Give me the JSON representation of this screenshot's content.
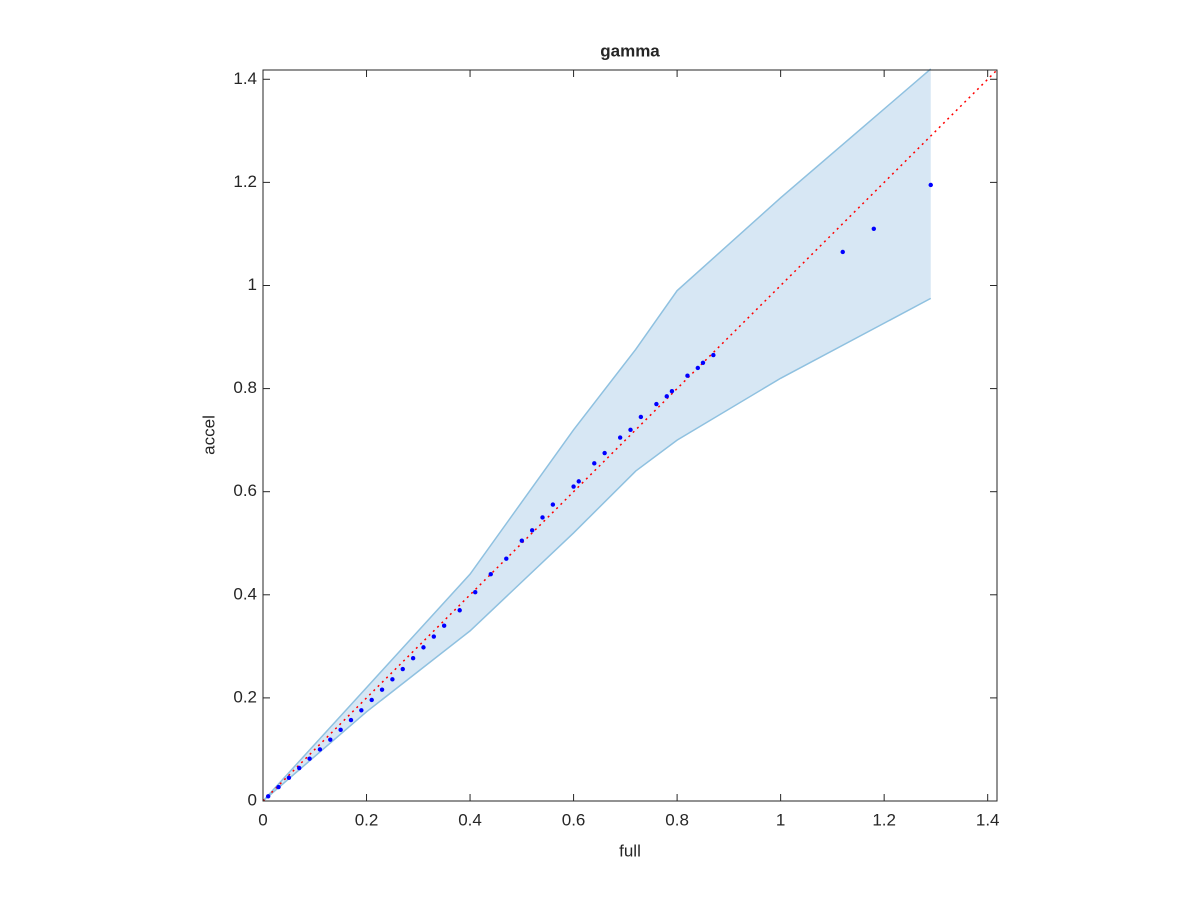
{
  "chart_data": {
    "type": "scatter",
    "title": "gamma",
    "x_label": "full",
    "y_label": "accel",
    "xlim": [
      0,
      1.418
    ],
    "ylim": [
      0,
      1.418
    ],
    "xticks": [
      0,
      0.2,
      0.4,
      0.6,
      0.8,
      1,
      1.2,
      1.4
    ],
    "yticks": [
      0,
      0.2,
      0.4,
      0.6,
      0.8,
      1,
      1.2,
      1.4
    ],
    "band": {
      "color": "#d7e7f4",
      "edge_color": "#8fc1e0",
      "x": [
        0,
        0.2,
        0.4,
        0.6,
        0.72,
        0.8,
        1.0,
        1.29
      ],
      "upper": [
        0,
        0.22,
        0.44,
        0.72,
        0.876,
        0.99,
        1.17,
        1.42
      ],
      "lower": [
        0,
        0.173,
        0.33,
        0.52,
        0.64,
        0.7,
        0.82,
        0.975
      ]
    },
    "reference_line": {
      "color": "#ff0000",
      "x": [
        0,
        1.418
      ],
      "y": [
        0,
        1.418
      ]
    },
    "series": [
      {
        "color": "#0000ff",
        "x": [
          0.01,
          0.03,
          0.05,
          0.07,
          0.09,
          0.11,
          0.13,
          0.15,
          0.17,
          0.19,
          0.21,
          0.23,
          0.25,
          0.27,
          0.29,
          0.31,
          0.33,
          0.35,
          0.38,
          0.41,
          0.44,
          0.47,
          0.5,
          0.52,
          0.54,
          0.56,
          0.6,
          0.61,
          0.64,
          0.66,
          0.69,
          0.71,
          0.73,
          0.76,
          0.78,
          0.79,
          0.82,
          0.84,
          0.85,
          0.87,
          1.12,
          1.18,
          1.29
        ],
        "values": [
          0.009,
          0.027,
          0.045,
          0.064,
          0.082,
          0.1,
          0.119,
          0.138,
          0.157,
          0.176,
          0.196,
          0.216,
          0.236,
          0.256,
          0.277,
          0.298,
          0.319,
          0.34,
          0.37,
          0.405,
          0.44,
          0.47,
          0.505,
          0.525,
          0.55,
          0.575,
          0.61,
          0.62,
          0.655,
          0.675,
          0.705,
          0.72,
          0.745,
          0.77,
          0.785,
          0.795,
          0.825,
          0.84,
          0.85,
          0.865,
          1.065,
          1.11,
          1.195
        ]
      }
    ]
  }
}
